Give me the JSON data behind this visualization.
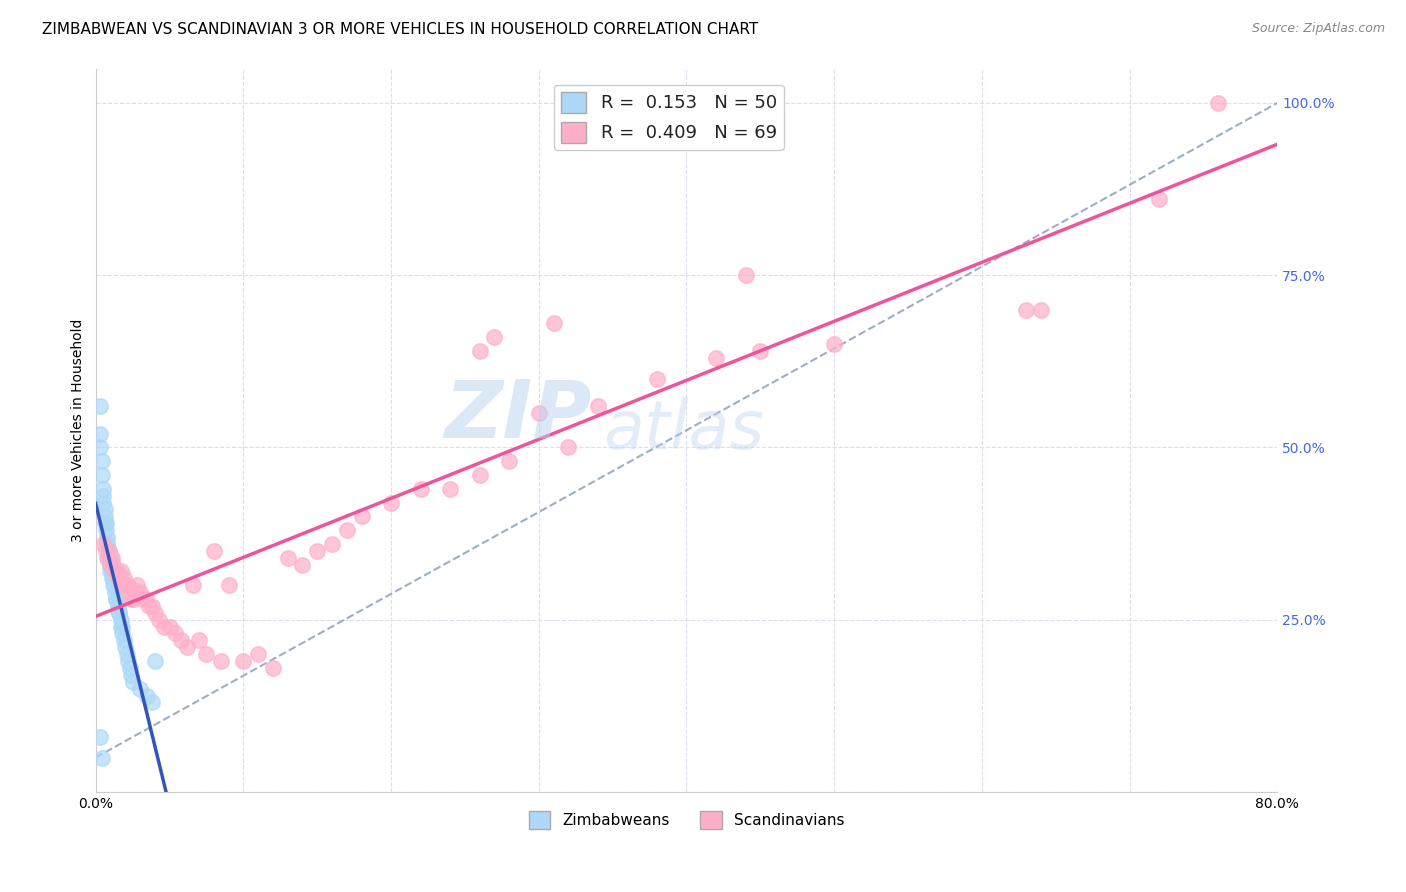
{
  "title": "ZIMBABWEAN VS SCANDINAVIAN 3 OR MORE VEHICLES IN HOUSEHOLD CORRELATION CHART",
  "source": "Source: ZipAtlas.com",
  "xlabel": "",
  "ylabel": "3 or more Vehicles in Household",
  "xlim": [
    0.0,
    0.8
  ],
  "ylim": [
    0.0,
    1.05
  ],
  "xticks": [
    0.0,
    0.1,
    0.2,
    0.3,
    0.4,
    0.5,
    0.6,
    0.7,
    0.8
  ],
  "xticklabels": [
    "0.0%",
    "",
    "",
    "",
    "",
    "",
    "",
    "",
    "80.0%"
  ],
  "yticks_right_vals": [
    0.0,
    0.25,
    0.5,
    0.75,
    1.0
  ],
  "yticks_right_labels": [
    "",
    "25.0%",
    "50.0%",
    "75.0%",
    "100.0%"
  ],
  "watermark": "ZIPatlas",
  "blue_color": "#ADD8F7",
  "pink_color": "#FFAEC9",
  "blue_line_color": "#3355BB",
  "pink_line_color": "#EE5599",
  "dashed_line_color": "#8899BB",
  "background_color": "#FFFFFF",
  "grid_color": "#DDDDEE",
  "title_fontsize": 11,
  "axis_label_fontsize": 10,
  "tick_fontsize": 10,
  "legend_fontsize": 13,
  "marker_size": 11,
  "zimbabwean_x": [
    0.003,
    0.003,
    0.003,
    0.004,
    0.004,
    0.005,
    0.005,
    0.005,
    0.006,
    0.006,
    0.006,
    0.007,
    0.007,
    0.008,
    0.008,
    0.008,
    0.009,
    0.009,
    0.01,
    0.01,
    0.01,
    0.011,
    0.011,
    0.012,
    0.012,
    0.013,
    0.013,
    0.014,
    0.014,
    0.015,
    0.015,
    0.016,
    0.016,
    0.017,
    0.017,
    0.018,
    0.018,
    0.019,
    0.02,
    0.021,
    0.022,
    0.023,
    0.024,
    0.025,
    0.03,
    0.035,
    0.038,
    0.003,
    0.004,
    0.04
  ],
  "zimbabwean_y": [
    0.56,
    0.52,
    0.5,
    0.48,
    0.46,
    0.44,
    0.43,
    0.42,
    0.41,
    0.4,
    0.39,
    0.39,
    0.38,
    0.37,
    0.36,
    0.36,
    0.35,
    0.34,
    0.34,
    0.33,
    0.32,
    0.32,
    0.31,
    0.31,
    0.3,
    0.3,
    0.29,
    0.28,
    0.28,
    0.27,
    0.27,
    0.26,
    0.26,
    0.25,
    0.24,
    0.24,
    0.23,
    0.22,
    0.21,
    0.2,
    0.19,
    0.18,
    0.17,
    0.16,
    0.15,
    0.14,
    0.13,
    0.08,
    0.05,
    0.19
  ],
  "scandinavian_x": [
    0.005,
    0.007,
    0.008,
    0.009,
    0.01,
    0.011,
    0.012,
    0.013,
    0.014,
    0.015,
    0.016,
    0.017,
    0.018,
    0.019,
    0.02,
    0.021,
    0.022,
    0.023,
    0.024,
    0.025,
    0.027,
    0.028,
    0.03,
    0.032,
    0.034,
    0.036,
    0.038,
    0.04,
    0.043,
    0.046,
    0.05,
    0.054,
    0.058,
    0.062,
    0.066,
    0.07,
    0.075,
    0.08,
    0.085,
    0.09,
    0.1,
    0.11,
    0.12,
    0.13,
    0.14,
    0.15,
    0.16,
    0.17,
    0.18,
    0.2,
    0.22,
    0.24,
    0.26,
    0.28,
    0.3,
    0.32,
    0.34,
    0.38,
    0.42,
    0.45,
    0.26,
    0.27,
    0.31,
    0.44,
    0.5,
    0.63,
    0.64,
    0.72,
    0.76
  ],
  "scandinavian_y": [
    0.36,
    0.35,
    0.34,
    0.35,
    0.33,
    0.34,
    0.33,
    0.32,
    0.32,
    0.31,
    0.31,
    0.32,
    0.3,
    0.31,
    0.3,
    0.3,
    0.3,
    0.29,
    0.28,
    0.28,
    0.29,
    0.3,
    0.29,
    0.28,
    0.28,
    0.27,
    0.27,
    0.26,
    0.25,
    0.24,
    0.24,
    0.23,
    0.22,
    0.21,
    0.3,
    0.22,
    0.2,
    0.35,
    0.19,
    0.3,
    0.19,
    0.2,
    0.18,
    0.34,
    0.33,
    0.35,
    0.36,
    0.38,
    0.4,
    0.42,
    0.44,
    0.44,
    0.46,
    0.48,
    0.55,
    0.5,
    0.56,
    0.6,
    0.63,
    0.64,
    0.64,
    0.66,
    0.68,
    0.75,
    0.65,
    0.7,
    0.7,
    0.86,
    1.0
  ]
}
